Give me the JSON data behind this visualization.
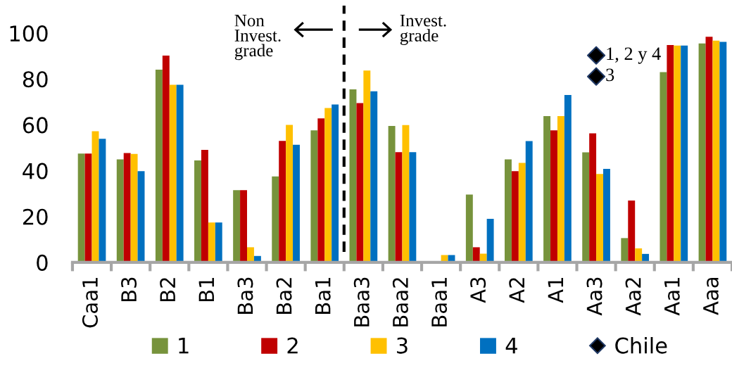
{
  "chart_data": {
    "type": "bar",
    "categories": [
      "Caa1",
      "B3",
      "B2",
      "B1",
      "Ba3",
      "Ba2",
      "Ba1",
      "Baa3",
      "Baa2",
      "Baa1",
      "A3",
      "A2",
      "A1",
      "Aa3",
      "Aa2",
      "Aa1",
      "Aaa"
    ],
    "series": [
      {
        "name": "1",
        "color": "#77933c",
        "values": [
          47.5,
          44.9,
          84.1,
          44.5,
          31.5,
          37.5,
          57.6,
          75.5,
          59.5,
          null,
          29.6,
          44.9,
          63.8,
          48.0,
          10.6,
          83.0,
          95.5
        ]
      },
      {
        "name": "2",
        "color": "#c00000",
        "values": [
          47.5,
          47.7,
          90.2,
          49.1,
          31.5,
          53.0,
          62.8,
          69.5,
          48.1,
          null,
          6.6,
          39.8,
          57.6,
          56.3,
          27.0,
          94.8,
          98.4
        ]
      },
      {
        "name": "3",
        "color": "#ffc000",
        "values": [
          57.2,
          47.3,
          77.5,
          17.4,
          6.6,
          60.0,
          67.3,
          83.7,
          59.9,
          3.2,
          3.8,
          43.4,
          63.8,
          38.6,
          6.1,
          94.6,
          96.7
        ]
      },
      {
        "name": "4",
        "color": "#0070c0",
        "values": [
          53.9,
          39.8,
          77.5,
          17.4,
          2.8,
          51.3,
          68.9,
          74.6,
          48.1,
          3.2,
          19.0,
          52.9,
          73.0,
          40.8,
          3.7,
          94.6,
          96.2
        ]
      },
      {
        "name": "Chile",
        "type": "scatter",
        "marker": "diamond",
        "color": "#000000",
        "x": [
          "Aa3",
          "Aa3"
        ],
        "values": [
          90.3,
          81.1
        ]
      }
    ],
    "ylim": [
      0,
      100
    ],
    "yticks": [
      0,
      20,
      40,
      60,
      80,
      100
    ],
    "annotations": [
      "Non\nInvest.\ngrade",
      "Invest.\ngrade",
      {
        "text": "1, 2 y 4",
        "x": "Aa3",
        "y": 90.3
      },
      {
        "text": "3",
        "x": "Aa3",
        "y": 81.1
      }
    ],
    "legend": "bottom",
    "grid": false
  }
}
